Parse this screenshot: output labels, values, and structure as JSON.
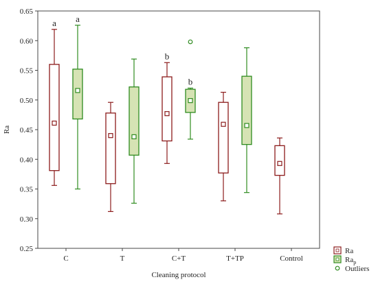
{
  "chart_data": {
    "type": "box",
    "title": "",
    "xlabel": "Cleaning protocol",
    "ylabel": "Ra",
    "ylim": [
      0.25,
      0.65
    ],
    "yticks": [
      "0.25",
      "0.30",
      "0.35",
      "0.40",
      "0.45",
      "0.50",
      "0.55",
      "0.60",
      "0.65"
    ],
    "categories": [
      "C",
      "T",
      "C+T",
      "T+TP",
      "Control"
    ],
    "grid": false,
    "legend_position": "bottom-right",
    "series": [
      {
        "name": "Ra",
        "color": "#8b1a1a",
        "fill": "#ffffff",
        "boxes": [
          {
            "category": "C",
            "min": 0.356,
            "q1": 0.381,
            "median": 0.461,
            "q3": 0.56,
            "max": 0.619,
            "annotation": "a"
          },
          {
            "category": "T",
            "min": 0.312,
            "q1": 0.359,
            "median": 0.44,
            "q3": 0.478,
            "max": 0.496,
            "annotation": ""
          },
          {
            "category": "C+T",
            "min": 0.393,
            "q1": 0.431,
            "median": 0.477,
            "q3": 0.539,
            "max": 0.563,
            "annotation": "b"
          },
          {
            "category": "T+TP",
            "min": 0.33,
            "q1": 0.377,
            "median": 0.459,
            "q3": 0.496,
            "max": 0.513,
            "annotation": ""
          },
          {
            "category": "Control",
            "min": 0.308,
            "q1": 0.373,
            "median": 0.393,
            "q3": 0.423,
            "max": 0.436,
            "annotation": ""
          }
        ]
      },
      {
        "name": "Rap",
        "color": "#2e8b1f",
        "fill": "#d6e3b4",
        "boxes": [
          {
            "category": "C",
            "min": 0.35,
            "q1": 0.468,
            "median": 0.516,
            "q3": 0.552,
            "max": 0.626,
            "annotation": "a"
          },
          {
            "category": "T",
            "min": 0.326,
            "q1": 0.407,
            "median": 0.438,
            "q3": 0.522,
            "max": 0.569,
            "annotation": ""
          },
          {
            "category": "C+T",
            "min": 0.434,
            "q1": 0.479,
            "median": 0.499,
            "q3": 0.518,
            "max": 0.52,
            "annotation": "b"
          },
          {
            "category": "T+TP",
            "min": 0.344,
            "q1": 0.425,
            "median": 0.457,
            "q3": 0.54,
            "max": 0.588,
            "annotation": ""
          }
        ],
        "outliers": [
          {
            "category": "C+T",
            "value": 0.598
          }
        ]
      }
    ],
    "legend": [
      {
        "label": "Ra",
        "sub": "",
        "kind": "box",
        "color": "#8b1a1a",
        "fill": "#ffffff"
      },
      {
        "label": "Ra",
        "sub": "p",
        "kind": "box",
        "color": "#2e8b1f",
        "fill": "#d6e3b4"
      },
      {
        "label": "Outliers",
        "sub": "",
        "kind": "circle",
        "color": "#2e8b1f",
        "fill": "#ffffff"
      }
    ]
  }
}
